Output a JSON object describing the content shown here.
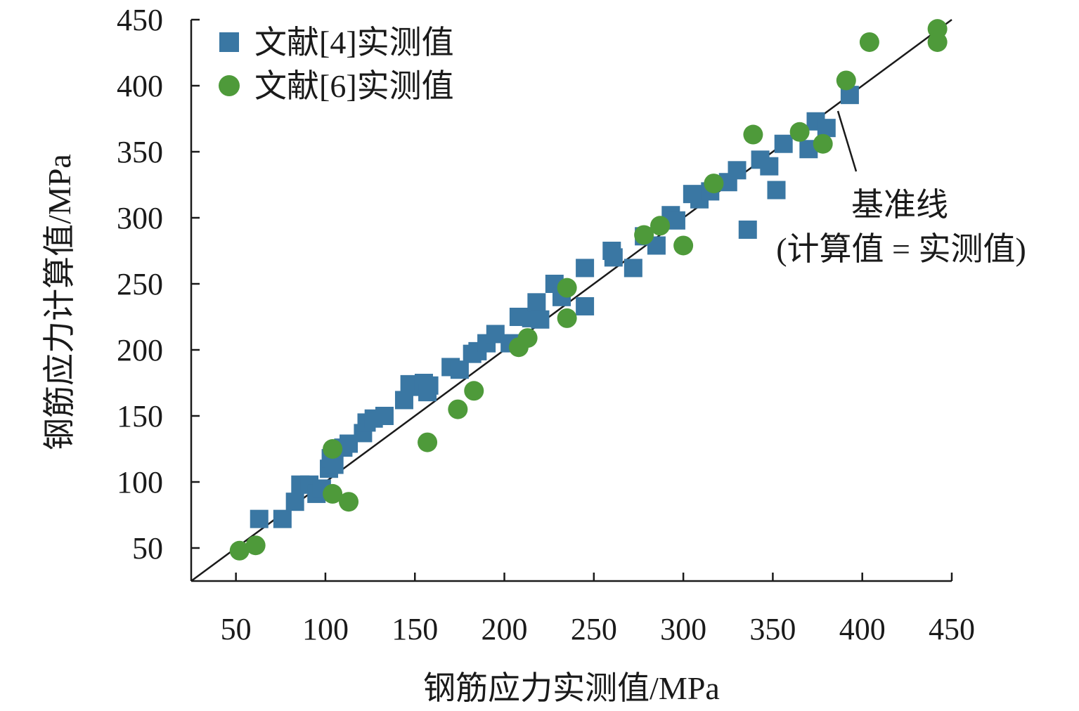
{
  "chart_data": {
    "type": "scatter",
    "xlabel": "钢筋应力实测值/MPa",
    "ylabel": "钢筋应力计算值/MPa",
    "xlim": [
      25,
      450
    ],
    "ylim": [
      25,
      450
    ],
    "xticks": [
      50,
      100,
      150,
      200,
      250,
      300,
      350,
      400,
      450
    ],
    "yticks": [
      50,
      100,
      150,
      200,
      250,
      300,
      350,
      400,
      450
    ],
    "grid": false,
    "legend_position": "top-left",
    "reference_line": {
      "label_line1": "基准线",
      "label_line2": "(计算值 = 实测值)",
      "points": [
        [
          25,
          25
        ],
        [
          450,
          450
        ]
      ]
    },
    "series": [
      {
        "name": "文献[4]实测值",
        "marker": "square",
        "color": "#3a77a3",
        "points": [
          [
            63,
            72
          ],
          [
            76,
            72
          ],
          [
            83,
            85
          ],
          [
            86,
            98
          ],
          [
            91,
            98
          ],
          [
            95,
            91
          ],
          [
            98,
            95
          ],
          [
            102,
            110
          ],
          [
            103,
            118
          ],
          [
            105,
            113
          ],
          [
            110,
            126
          ],
          [
            113,
            129
          ],
          [
            121,
            137
          ],
          [
            123,
            145
          ],
          [
            127,
            148
          ],
          [
            133,
            150
          ],
          [
            144,
            162
          ],
          [
            147,
            174
          ],
          [
            150,
            172
          ],
          [
            155,
            175
          ],
          [
            157,
            168
          ],
          [
            158,
            173
          ],
          [
            170,
            187
          ],
          [
            175,
            185
          ],
          [
            182,
            197
          ],
          [
            185,
            199
          ],
          [
            190,
            205
          ],
          [
            195,
            212
          ],
          [
            203,
            205
          ],
          [
            208,
            225
          ],
          [
            215,
            224
          ],
          [
            218,
            236
          ],
          [
            220,
            223
          ],
          [
            228,
            250
          ],
          [
            232,
            240
          ],
          [
            245,
            262
          ],
          [
            245,
            233
          ],
          [
            260,
            275
          ],
          [
            261,
            270
          ],
          [
            272,
            262
          ],
          [
            278,
            286
          ],
          [
            285,
            279
          ],
          [
            293,
            302
          ],
          [
            296,
            298
          ],
          [
            305,
            318
          ],
          [
            309,
            314
          ],
          [
            315,
            320
          ],
          [
            325,
            327
          ],
          [
            330,
            336
          ],
          [
            336,
            291
          ],
          [
            343,
            344
          ],
          [
            348,
            339
          ],
          [
            352,
            321
          ],
          [
            356,
            356
          ],
          [
            370,
            352
          ],
          [
            374,
            373
          ],
          [
            380,
            368
          ],
          [
            393,
            393
          ]
        ]
      },
      {
        "name": "文献[6]实测值",
        "marker": "circle",
        "color": "#4e9a3a",
        "points": [
          [
            52,
            48
          ],
          [
            61,
            52
          ],
          [
            104,
            125
          ],
          [
            104,
            91
          ],
          [
            113,
            85
          ],
          [
            157,
            130
          ],
          [
            174,
            155
          ],
          [
            183,
            169
          ],
          [
            208,
            202
          ],
          [
            213,
            209
          ],
          [
            235,
            247
          ],
          [
            235,
            224
          ],
          [
            278,
            287
          ],
          [
            287,
            294
          ],
          [
            300,
            279
          ],
          [
            317,
            326
          ],
          [
            339,
            363
          ],
          [
            365,
            365
          ],
          [
            378,
            356
          ],
          [
            391,
            404
          ],
          [
            404,
            433
          ],
          [
            442,
            443
          ],
          [
            442,
            433
          ]
        ]
      }
    ]
  }
}
